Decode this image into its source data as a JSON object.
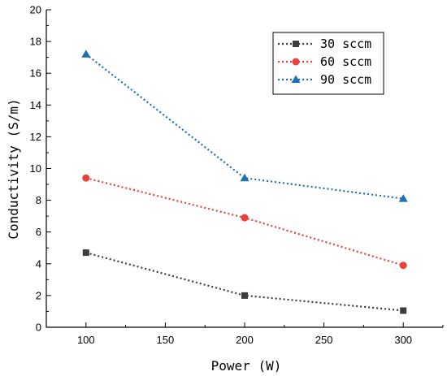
{
  "chart_data": {
    "type": "line",
    "xlabel": "Power (W)",
    "ylabel": "Conductivity (S/m)",
    "xlim": [
      75,
      325
    ],
    "ylim": [
      0,
      20
    ],
    "x_ticks": [
      100,
      150,
      200,
      250,
      300
    ],
    "y_ticks": [
      0,
      2,
      4,
      6,
      8,
      10,
      12,
      14,
      16,
      18,
      20
    ],
    "grid": false,
    "legend_position": "top-right",
    "x": [
      100,
      200,
      300
    ],
    "series": [
      {
        "name": "30 sccm",
        "values": [
          4.7,
          2.0,
          1.05
        ],
        "color": "#3d3d3d",
        "marker": "square"
      },
      {
        "name": "60 sccm",
        "values": [
          9.4,
          6.9,
          3.9
        ],
        "color": "#e8413c",
        "marker": "circle"
      },
      {
        "name": "90 sccm",
        "values": [
          17.2,
          9.4,
          8.1
        ],
        "color": "#1f6fb4",
        "marker": "triangle"
      }
    ]
  }
}
